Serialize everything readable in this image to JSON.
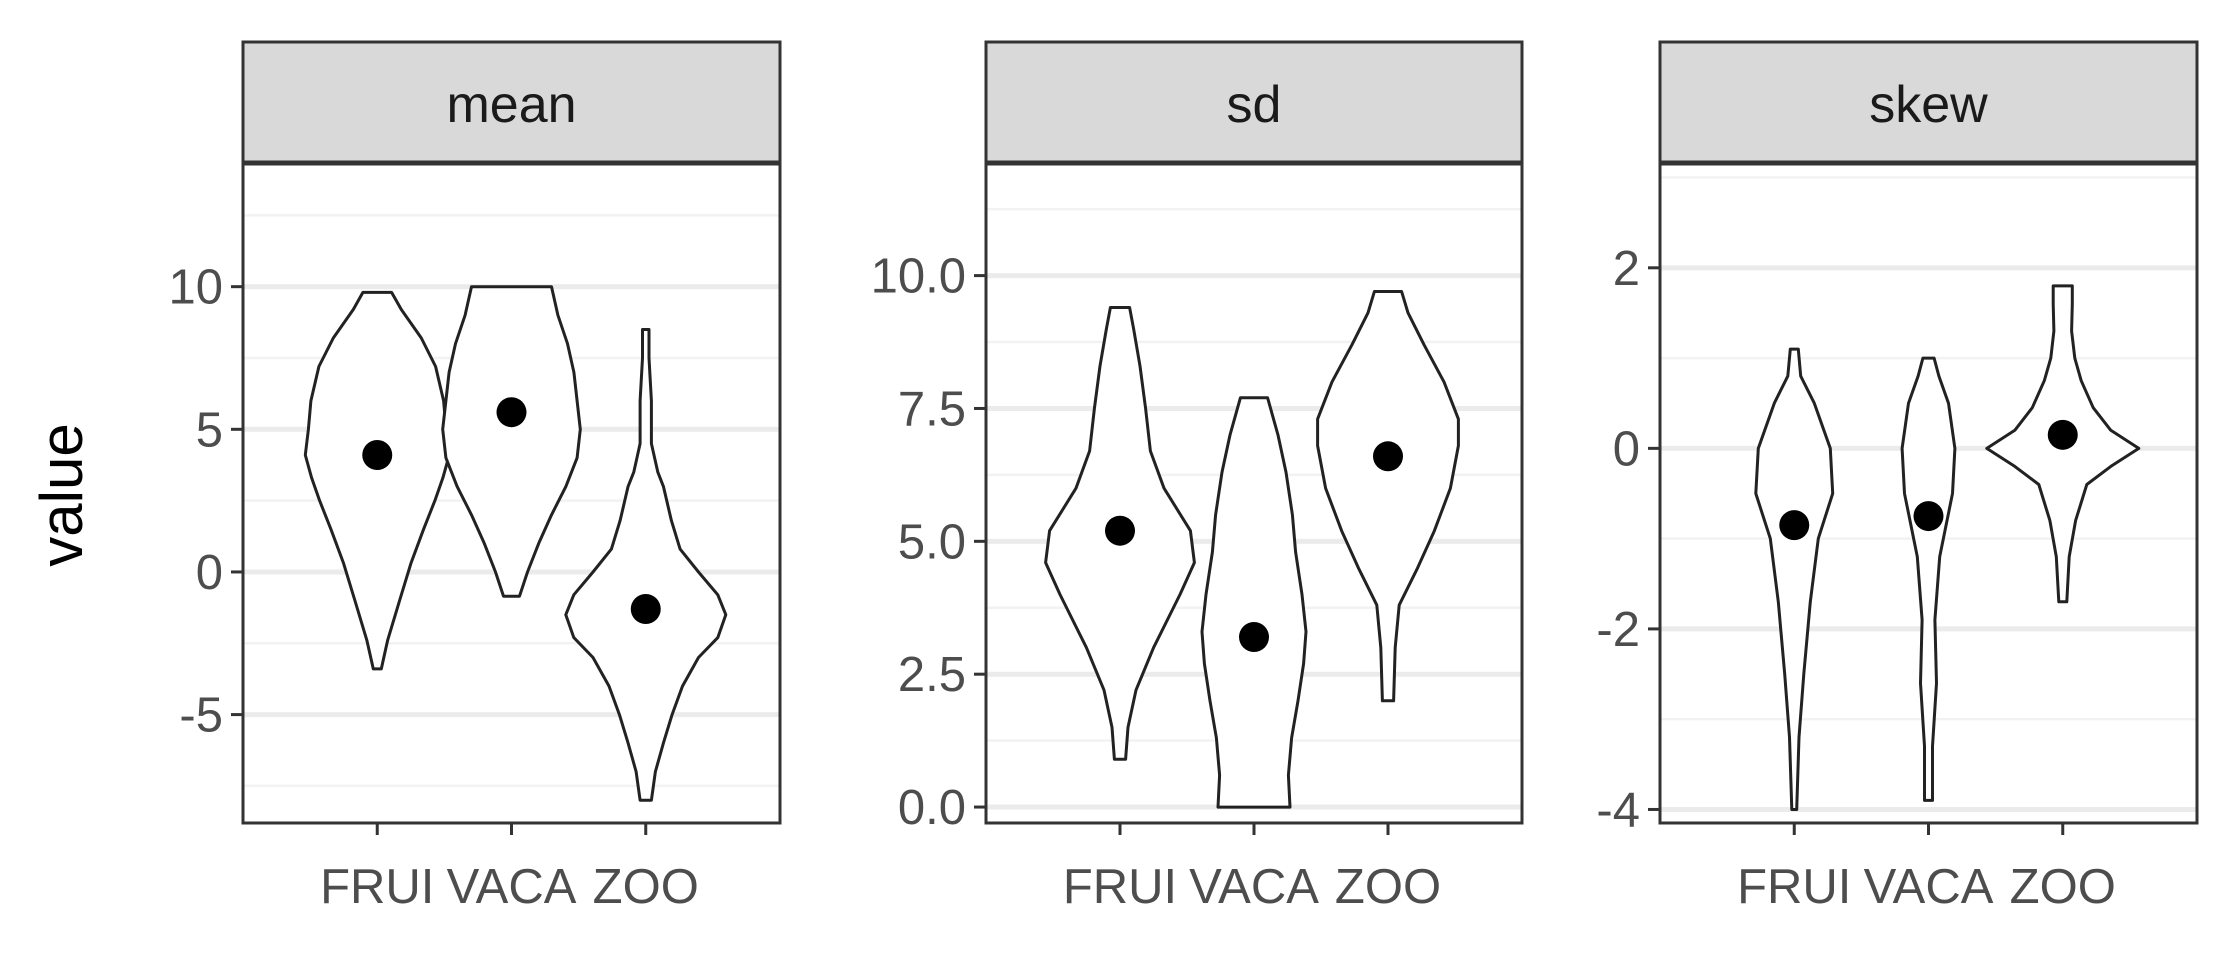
{
  "chart_data": {
    "type": "violin",
    "ylabel": "value",
    "xlabel": "",
    "categories": [
      "FRUI",
      "VACA",
      "ZOO"
    ],
    "grid": true,
    "panels": [
      {
        "name": "mean",
        "ylim": [
          -8.8,
          14.3
        ],
        "yticks": [
          -5,
          0,
          5,
          10
        ],
        "ytick_labels": [
          "-5",
          "0",
          "5",
          "10"
        ],
        "violins": [
          {
            "category": "FRUI",
            "min": -3.4,
            "max": 9.8,
            "point": 4.1,
            "shape": [
              [
                -3.4,
                0.05
              ],
              [
                -2.4,
                0.13
              ],
              [
                -1.0,
                0.28
              ],
              [
                0.3,
                0.42
              ],
              [
                1.5,
                0.58
              ],
              [
                2.5,
                0.72
              ],
              [
                3.3,
                0.82
              ],
              [
                4.1,
                0.9
              ],
              [
                5.0,
                0.86
              ],
              [
                6.0,
                0.83
              ],
              [
                7.2,
                0.73
              ],
              [
                8.2,
                0.55
              ],
              [
                9.2,
                0.3
              ],
              [
                9.8,
                0.18
              ]
            ]
          },
          {
            "category": "VACA",
            "min": -0.85,
            "max": 10.0,
            "point": 5.6,
            "shape": [
              [
                -0.85,
                0.1
              ],
              [
                0.0,
                0.2
              ],
              [
                1.0,
                0.34
              ],
              [
                2.0,
                0.5
              ],
              [
                3.0,
                0.68
              ],
              [
                4.0,
                0.82
              ],
              [
                5.0,
                0.86
              ],
              [
                6.0,
                0.82
              ],
              [
                7.0,
                0.78
              ],
              [
                8.0,
                0.7
              ],
              [
                9.0,
                0.58
              ],
              [
                10.0,
                0.5
              ]
            ]
          },
          {
            "category": "ZOO",
            "min": -8.0,
            "max": 8.5,
            "point": -1.3,
            "shape": [
              [
                -8.0,
                0.07
              ],
              [
                -7.0,
                0.12
              ],
              [
                -6.0,
                0.22
              ],
              [
                -5.0,
                0.33
              ],
              [
                -4.0,
                0.46
              ],
              [
                -3.0,
                0.66
              ],
              [
                -2.3,
                0.9
              ],
              [
                -1.5,
                1.0
              ],
              [
                -0.8,
                0.9
              ],
              [
                0.0,
                0.66
              ],
              [
                0.8,
                0.43
              ],
              [
                1.8,
                0.32
              ],
              [
                3.0,
                0.22
              ],
              [
                3.5,
                0.15
              ],
              [
                4.5,
                0.07
              ],
              [
                6.0,
                0.07
              ],
              [
                7.5,
                0.04
              ],
              [
                8.5,
                0.04
              ]
            ]
          }
        ]
      },
      {
        "name": "sd",
        "ylim": [
          -0.3,
          12.1
        ],
        "yticks": [
          0.0,
          2.5,
          5.0,
          7.5,
          10.0
        ],
        "ytick_labels": [
          "0.0",
          "2.5",
          "5.0",
          "7.5",
          "10.0"
        ],
        "violins": [
          {
            "category": "FRUI",
            "min": 0.9,
            "max": 9.4,
            "point": 5.2,
            "shape": [
              [
                0.9,
                0.07
              ],
              [
                1.5,
                0.1
              ],
              [
                2.2,
                0.2
              ],
              [
                3.0,
                0.42
              ],
              [
                4.0,
                0.75
              ],
              [
                4.6,
                0.93
              ],
              [
                5.2,
                0.88
              ],
              [
                6.0,
                0.55
              ],
              [
                6.7,
                0.38
              ],
              [
                7.5,
                0.32
              ],
              [
                8.3,
                0.25
              ],
              [
                9.0,
                0.17
              ],
              [
                9.4,
                0.12
              ]
            ]
          },
          {
            "category": "VACA",
            "min": 0.0,
            "max": 7.7,
            "point": 3.2,
            "shape": [
              [
                0.0,
                0.45
              ],
              [
                0.6,
                0.43
              ],
              [
                1.3,
                0.47
              ],
              [
                2.0,
                0.55
              ],
              [
                2.7,
                0.62
              ],
              [
                3.3,
                0.65
              ],
              [
                4.0,
                0.6
              ],
              [
                4.8,
                0.52
              ],
              [
                5.5,
                0.48
              ],
              [
                6.3,
                0.4
              ],
              [
                7.0,
                0.3
              ],
              [
                7.7,
                0.17
              ]
            ]
          },
          {
            "category": "ZOO",
            "min": 2.0,
            "max": 9.7,
            "point": 6.6,
            "shape": [
              [
                2.0,
                0.07
              ],
              [
                3.0,
                0.09
              ],
              [
                3.8,
                0.14
              ],
              [
                4.5,
                0.37
              ],
              [
                5.2,
                0.58
              ],
              [
                6.0,
                0.78
              ],
              [
                6.8,
                0.88
              ],
              [
                7.3,
                0.88
              ],
              [
                8.0,
                0.7
              ],
              [
                8.7,
                0.45
              ],
              [
                9.3,
                0.25
              ],
              [
                9.7,
                0.17
              ]
            ]
          }
        ]
      },
      {
        "name": "skew",
        "ylim": [
          -4.15,
          3.15
        ],
        "yticks": [
          -4,
          -2,
          0,
          2
        ],
        "ytick_labels": [
          "-4",
          "-2",
          "0",
          "2"
        ],
        "violins": [
          {
            "category": "FRUI",
            "min": -4.0,
            "max": 1.1,
            "point": -0.85,
            "shape": [
              [
                -4.0,
                0.03
              ],
              [
                -3.2,
                0.06
              ],
              [
                -2.5,
                0.12
              ],
              [
                -1.7,
                0.2
              ],
              [
                -1.0,
                0.3
              ],
              [
                -0.5,
                0.48
              ],
              [
                0.0,
                0.45
              ],
              [
                0.5,
                0.25
              ],
              [
                0.8,
                0.08
              ],
              [
                1.1,
                0.05
              ]
            ]
          },
          {
            "category": "VACA",
            "min": -3.9,
            "max": 1.0,
            "point": -0.75,
            "shape": [
              [
                -3.9,
                0.05
              ],
              [
                -3.3,
                0.05
              ],
              [
                -2.6,
                0.1
              ],
              [
                -1.9,
                0.08
              ],
              [
                -1.2,
                0.14
              ],
              [
                -0.5,
                0.3
              ],
              [
                0.0,
                0.33
              ],
              [
                0.5,
                0.25
              ],
              [
                0.8,
                0.13
              ],
              [
                1.0,
                0.07
              ]
            ]
          },
          {
            "category": "ZOO",
            "min": -1.7,
            "max": 1.8,
            "point": 0.15,
            "shape": [
              [
                -1.7,
                0.05
              ],
              [
                -1.2,
                0.08
              ],
              [
                -0.8,
                0.16
              ],
              [
                -0.4,
                0.3
              ],
              [
                -0.2,
                0.6
              ],
              [
                0.0,
                0.95
              ],
              [
                0.2,
                0.6
              ],
              [
                0.45,
                0.38
              ],
              [
                0.75,
                0.23
              ],
              [
                1.0,
                0.15
              ],
              [
                1.3,
                0.11
              ],
              [
                1.6,
                0.12
              ],
              [
                1.8,
                0.12
              ]
            ]
          }
        ]
      }
    ]
  },
  "colors": {
    "strip_fill": "#d9d9d9",
    "panel_border": "#333333",
    "grid_major": "#ebebeb",
    "grid_minor": "#f2f2f2",
    "violin_fill": "#ffffff",
    "violin_stroke": "#222222",
    "point": "#000000",
    "tick_text": "#4d4d4d"
  }
}
